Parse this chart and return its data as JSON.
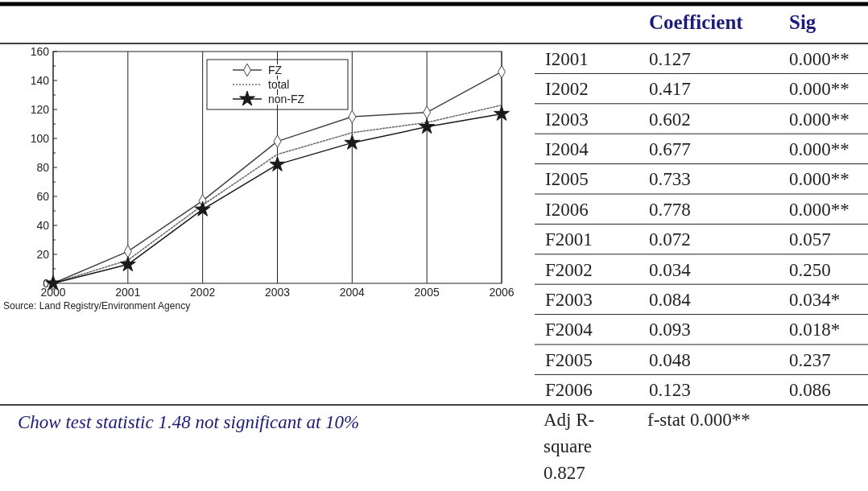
{
  "chart_data": [
    {
      "type": "line",
      "x": [
        2000,
        2001,
        2002,
        2003,
        2004,
        2005,
        2006
      ],
      "xlim": [
        2000,
        2006
      ],
      "xticks": [
        2000,
        2001,
        2002,
        2003,
        2004,
        2005,
        2006
      ],
      "ylim": [
        0,
        160
      ],
      "yticks": [
        0,
        {
          "value": 10,
          "label": null
        },
        20,
        {
          "value": 30,
          "label": null
        },
        40,
        {
          "value": 50,
          "label": null
        },
        60,
        {
          "value": 70,
          "label": null
        },
        80,
        {
          "value": 90,
          "label": null
        },
        100,
        {
          "value": 110,
          "label": null
        },
        120,
        {
          "value": 130,
          "label": null
        },
        140,
        {
          "value": 150,
          "label": null
        },
        160
      ],
      "grid": "x",
      "legend": "top",
      "series": [
        {
          "name": "FZ",
          "color": "#444444",
          "marker": "diamond",
          "line_style": "solid",
          "values": [
            0,
            22,
            57,
            98,
            115,
            118,
            146
          ]
        },
        {
          "name": "total",
          "color": "#666666",
          "marker": "none",
          "line_style": "dotted",
          "values": [
            0,
            16,
            54,
            89,
            104,
            111,
            123
          ]
        },
        {
          "name": "non-FZ",
          "color": "#1a1a1a",
          "marker": "star",
          "line_style": "solid",
          "values": [
            0,
            13,
            51,
            82,
            97,
            108,
            117
          ]
        }
      ],
      "annotations": [
        "Source: Land Registry/Environment Agency",
        "Chow test statistic 1.48 not significant at 10%"
      ]
    },
    {
      "type": "other",
      "categories": [
        "I2001",
        "I2002",
        "I2003",
        "I2004",
        "I2005",
        "I2006",
        "F2001",
        "F2002",
        "F2003",
        "F2004",
        "F2005",
        "F2006"
      ],
      "series": [
        {
          "name": "Coefficient",
          "values": [
            0.127,
            0.417,
            0.602,
            0.677,
            0.733,
            0.778,
            0.072,
            0.034,
            0.084,
            0.093,
            0.048,
            0.123
          ],
          "data_labels": true
        },
        {
          "name": "Sig",
          "values": [
            0.0,
            0.0,
            0.0,
            0.0,
            0.0,
            0.0,
            0.057,
            0.25,
            0.034,
            0.018,
            0.237,
            0.086
          ],
          "value_labels": [
            "0.000**",
            "0.000**",
            "0.000**",
            "0.000**",
            "0.000**",
            "0.000**",
            "0.057",
            "0.250",
            "0.034*",
            "0.018*",
            "0.237",
            "0.086"
          ]
        }
      ],
      "annotations": [
        "Adj R-square 0.827",
        "f-stat 0.000**"
      ]
    }
  ]
}
